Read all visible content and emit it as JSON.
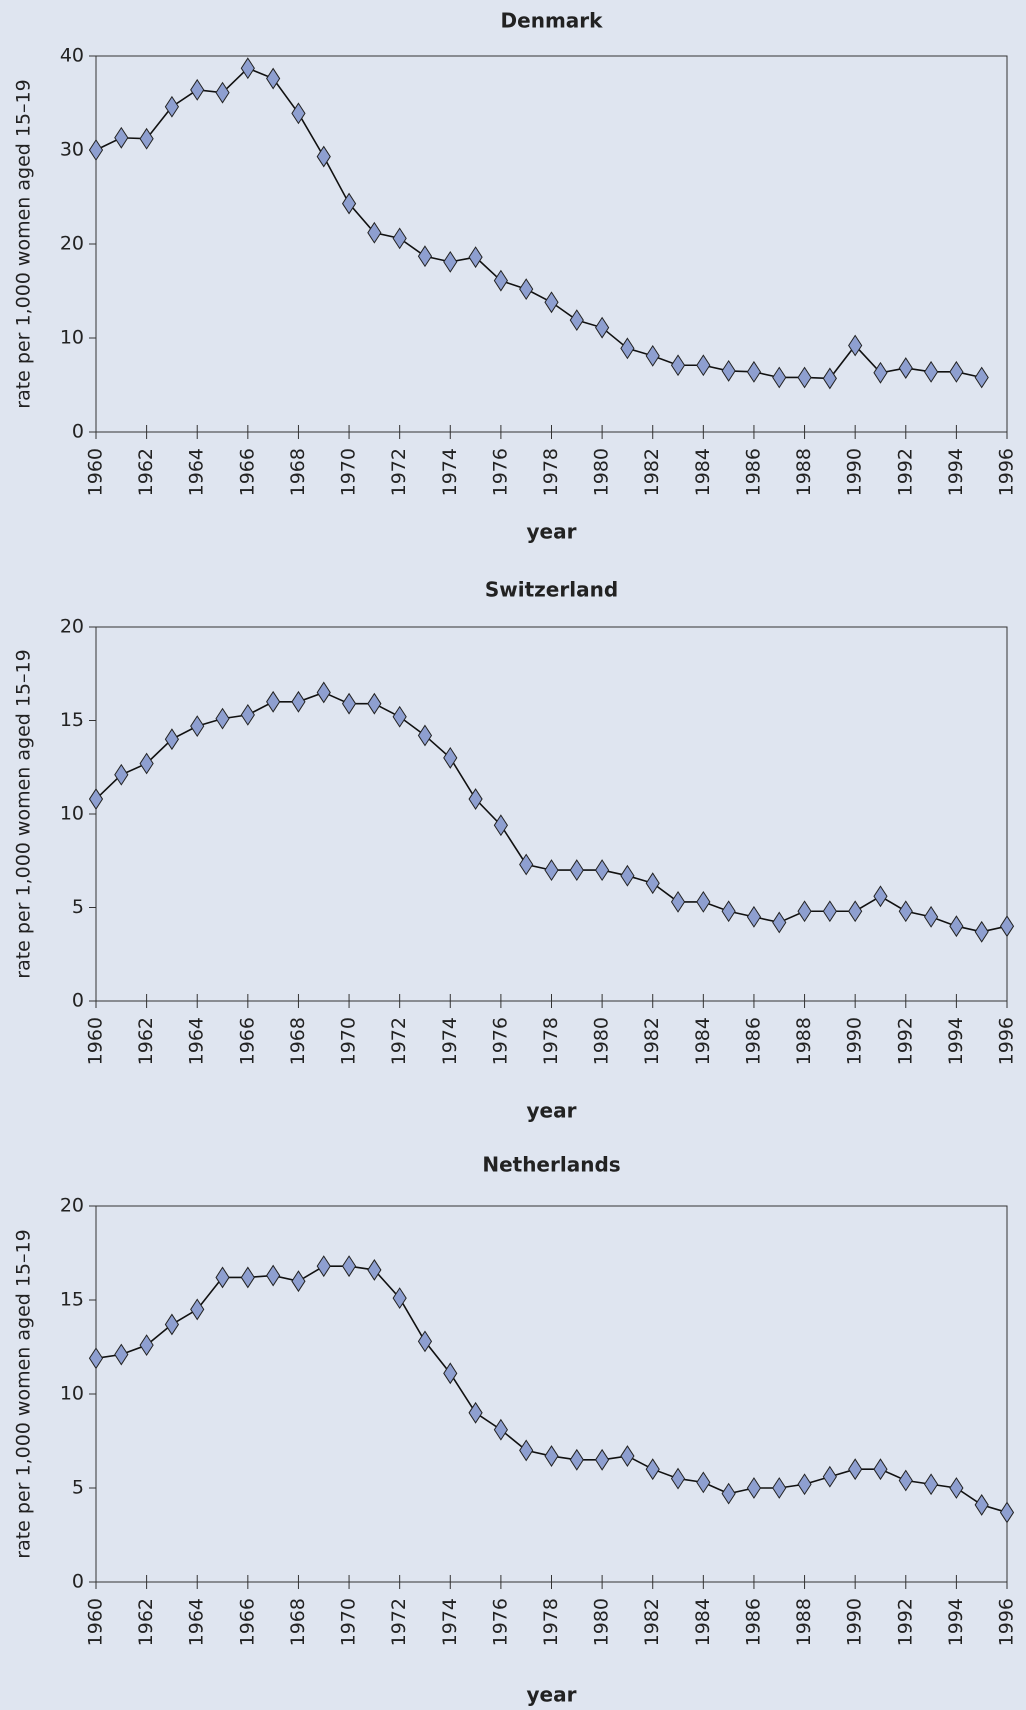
{
  "chart_data": [
    {
      "type": "line",
      "title": "Denmark",
      "xlabel": "year",
      "ylabel": "rate per 1,000 women aged 15–19",
      "xlim": [
        1960,
        1996
      ],
      "xticks": [
        1960,
        1962,
        1964,
        1966,
        1968,
        1970,
        1972,
        1974,
        1976,
        1978,
        1980,
        1982,
        1984,
        1986,
        1988,
        1990,
        1992,
        1994,
        1996
      ],
      "ylim": [
        0,
        40
      ],
      "yticks": [
        0,
        10,
        20,
        30,
        40
      ],
      "series": [
        {
          "color": "#8e9fd0",
          "x": [
            1960,
            1961,
            1962,
            1963,
            1964,
            1965,
            1966,
            1967,
            1968,
            1969,
            1970,
            1971,
            1972,
            1973,
            1974,
            1975,
            1976,
            1977,
            1978,
            1979,
            1980,
            1981,
            1982,
            1983,
            1984,
            1985,
            1986,
            1987,
            1988,
            1989,
            1990,
            1991,
            1992,
            1993,
            1994,
            1995
          ],
          "values": [
            30.0,
            31.3,
            31.2,
            34.6,
            36.4,
            36.1,
            38.7,
            37.6,
            33.9,
            29.3,
            24.3,
            21.2,
            20.6,
            18.7,
            18.1,
            18.6,
            16.1,
            15.2,
            13.8,
            11.9,
            11.1,
            8.9,
            8.1,
            7.1,
            7.1,
            6.5,
            6.4,
            5.8,
            5.8,
            5.7,
            9.2,
            6.3,
            6.8,
            6.4,
            6.4,
            5.8
          ]
        }
      ]
    },
    {
      "type": "line",
      "title": "Switzerland",
      "xlabel": "year",
      "ylabel": "rate per 1,000 women aged 15–19",
      "xlim": [
        1960,
        1996
      ],
      "xticks": [
        1960,
        1962,
        1964,
        1966,
        1968,
        1970,
        1972,
        1974,
        1976,
        1978,
        1980,
        1982,
        1984,
        1986,
        1988,
        1990,
        1992,
        1994,
        1996
      ],
      "ylim": [
        0,
        20
      ],
      "yticks": [
        0,
        5,
        10,
        15,
        20
      ],
      "series": [
        {
          "color": "#8e9fd0",
          "x": [
            1960,
            1961,
            1962,
            1963,
            1964,
            1965,
            1966,
            1967,
            1968,
            1969,
            1970,
            1971,
            1972,
            1973,
            1974,
            1975,
            1976,
            1977,
            1978,
            1979,
            1980,
            1981,
            1982,
            1983,
            1984,
            1985,
            1986,
            1987,
            1988,
            1989,
            1990,
            1991,
            1992,
            1993,
            1994,
            1995,
            1996
          ],
          "values": [
            10.8,
            12.1,
            12.7,
            14.0,
            14.7,
            15.1,
            15.3,
            16.0,
            16.0,
            16.5,
            15.9,
            15.9,
            15.2,
            14.2,
            13.0,
            10.8,
            9.4,
            7.3,
            7.0,
            7.0,
            7.0,
            6.7,
            6.3,
            5.3,
            5.3,
            4.8,
            4.5,
            4.2,
            4.8,
            4.8,
            4.8,
            5.6,
            4.8,
            4.5,
            4.0,
            3.7,
            4.0
          ]
        }
      ]
    },
    {
      "type": "line",
      "title": "Netherlands",
      "xlabel": "year",
      "ylabel": "rate per 1,000 women aged 15–19",
      "xlim": [
        1960,
        1996
      ],
      "xticks": [
        1960,
        1962,
        1964,
        1966,
        1968,
        1970,
        1972,
        1974,
        1976,
        1978,
        1980,
        1982,
        1984,
        1986,
        1988,
        1990,
        1992,
        1994,
        1996
      ],
      "ylim": [
        0,
        20
      ],
      "yticks": [
        0,
        5,
        10,
        15,
        20
      ],
      "series": [
        {
          "color": "#8e9fd0",
          "x": [
            1960,
            1961,
            1962,
            1963,
            1964,
            1965,
            1966,
            1967,
            1968,
            1969,
            1970,
            1971,
            1972,
            1973,
            1974,
            1975,
            1976,
            1977,
            1978,
            1979,
            1980,
            1981,
            1982,
            1983,
            1984,
            1985,
            1986,
            1987,
            1988,
            1989,
            1990,
            1991,
            1992,
            1993,
            1994,
            1995,
            1996
          ],
          "values": [
            11.9,
            12.1,
            12.6,
            13.7,
            14.5,
            16.2,
            16.2,
            16.3,
            16.0,
            16.8,
            16.8,
            16.6,
            15.1,
            12.8,
            11.1,
            9.0,
            8.1,
            7.0,
            6.7,
            6.5,
            6.5,
            6.7,
            6.0,
            5.5,
            5.3,
            4.7,
            5.0,
            5.0,
            5.2,
            5.6,
            6.0,
            6.0,
            5.4,
            5.2,
            5.0,
            4.1,
            3.7
          ]
        }
      ]
    }
  ]
}
